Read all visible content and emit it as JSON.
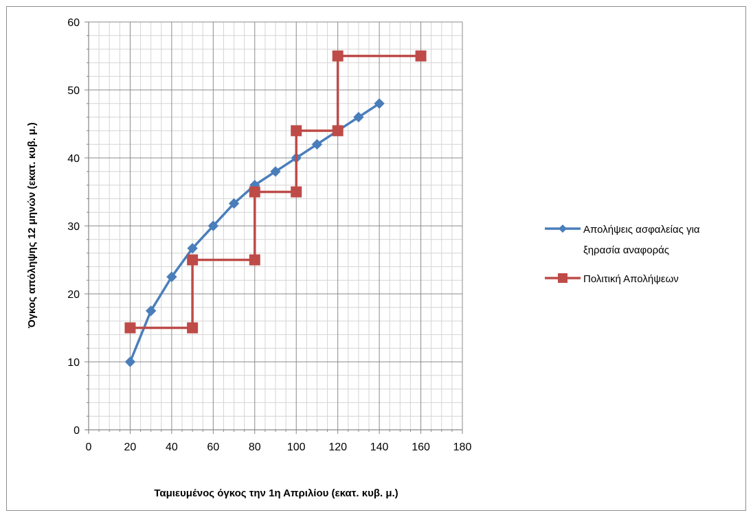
{
  "chart_data": {
    "type": "line",
    "title": "",
    "xlabel": "Ταμιευμένος όγκος την 1η Απριλίου (εκατ. κυβ. μ.)",
    "ylabel": "Όγκος απόληψης 12 μηνών (εκατ. κυβ. μ.)",
    "xlim": [
      0,
      180
    ],
    "ylim": [
      0,
      60
    ],
    "x_ticks": [
      0,
      20,
      40,
      60,
      80,
      100,
      120,
      140,
      160,
      180
    ],
    "y_ticks": [
      0,
      10,
      20,
      30,
      40,
      50,
      60
    ],
    "x_major_step": 20,
    "x_minor_step": 5,
    "y_major_step": 10,
    "y_minor_step": 2,
    "grid": true,
    "legend_position": "right",
    "series": [
      {
        "name": "Απολήψεις ασφαλείας για ξηρασία αναφοράς",
        "legend_lines": [
          "Απολήψεις ασφαλείας για",
          "ξηρασία αναφοράς"
        ],
        "color": "#4a7ebb",
        "marker": "diamond",
        "points": [
          [
            20,
            10
          ],
          [
            30,
            17.5
          ],
          [
            40,
            22.5
          ],
          [
            50,
            26.7
          ],
          [
            60,
            30
          ],
          [
            70,
            33.3
          ],
          [
            80,
            36
          ],
          [
            90,
            38
          ],
          [
            100,
            40
          ],
          [
            110,
            42
          ],
          [
            120,
            44
          ],
          [
            130,
            46
          ],
          [
            140,
            48
          ]
        ]
      },
      {
        "name": "Πολιτική Απολήψεων",
        "legend_lines": [
          "Πολιτική Απολήψεων"
        ],
        "color": "#be4b48",
        "marker": "square",
        "points": [
          [
            20,
            15
          ],
          [
            50,
            15
          ],
          [
            50,
            25
          ],
          [
            80,
            25
          ],
          [
            80,
            35
          ],
          [
            100,
            35
          ],
          [
            100,
            44
          ],
          [
            120,
            44
          ],
          [
            120,
            55
          ],
          [
            160,
            55
          ]
        ]
      }
    ]
  }
}
